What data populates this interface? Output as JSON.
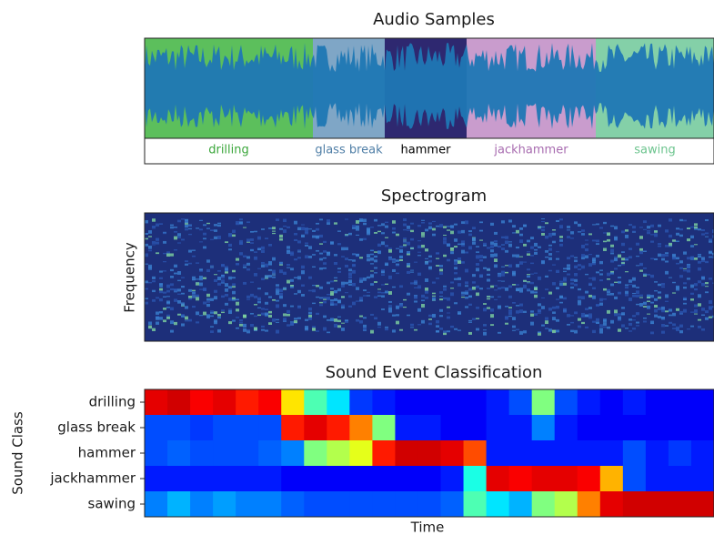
{
  "audio_panel": {
    "title": "Audio Samples",
    "segments": [
      {
        "name": "drilling",
        "color": "#5cbf5c",
        "label_color": "#3aa63a"
      },
      {
        "name": "glass break",
        "color": "#7fa6c6",
        "label_color": "#4f7ea6"
      },
      {
        "name": "hammer",
        "color": "#2e2870",
        "label_color": "#000000"
      },
      {
        "name": "jackhammer",
        "color": "#c99ccd",
        "label_color": "#a86cb0"
      },
      {
        "name": "sawing",
        "color": "#84d0a8",
        "label_color": "#6cc48e"
      }
    ],
    "waveform_color": "#1f77b4"
  },
  "spectrogram_panel": {
    "title": "Spectrogram",
    "y_label": "Frequency"
  },
  "classification_panel": {
    "title": "Sound Event Classification",
    "y_label": "Sound Class",
    "x_label": "Time",
    "classes": [
      "drilling",
      "glass break",
      "hammer",
      "jackhammer",
      "sawing"
    ],
    "values": [
      [
        0.9,
        0.92,
        0.88,
        0.9,
        0.85,
        0.88,
        0.65,
        0.45,
        0.35,
        0.18,
        0.15,
        0.12,
        0.12,
        0.12,
        0.12,
        0.15,
        0.2,
        0.5,
        0.2,
        0.15,
        0.12,
        0.15,
        0.12,
        0.12,
        0.12
      ],
      [
        0.2,
        0.2,
        0.18,
        0.2,
        0.2,
        0.2,
        0.85,
        0.9,
        0.85,
        0.75,
        0.5,
        0.15,
        0.15,
        0.12,
        0.12,
        0.15,
        0.15,
        0.25,
        0.15,
        0.12,
        0.12,
        0.12,
        0.12,
        0.12,
        0.12
      ],
      [
        0.2,
        0.22,
        0.2,
        0.2,
        0.2,
        0.22,
        0.25,
        0.5,
        0.55,
        0.6,
        0.85,
        0.92,
        0.92,
        0.9,
        0.8,
        0.15,
        0.15,
        0.15,
        0.15,
        0.15,
        0.15,
        0.2,
        0.15,
        0.18,
        0.15
      ],
      [
        0.15,
        0.15,
        0.15,
        0.15,
        0.15,
        0.15,
        0.12,
        0.12,
        0.12,
        0.12,
        0.12,
        0.12,
        0.12,
        0.15,
        0.4,
        0.9,
        0.88,
        0.9,
        0.9,
        0.88,
        0.7,
        0.2,
        0.15,
        0.15,
        0.15
      ],
      [
        0.25,
        0.3,
        0.25,
        0.28,
        0.25,
        0.25,
        0.22,
        0.2,
        0.2,
        0.2,
        0.2,
        0.2,
        0.2,
        0.22,
        0.45,
        0.35,
        0.3,
        0.5,
        0.55,
        0.75,
        0.9,
        0.92,
        0.92,
        0.92,
        0.92
      ]
    ]
  }
}
